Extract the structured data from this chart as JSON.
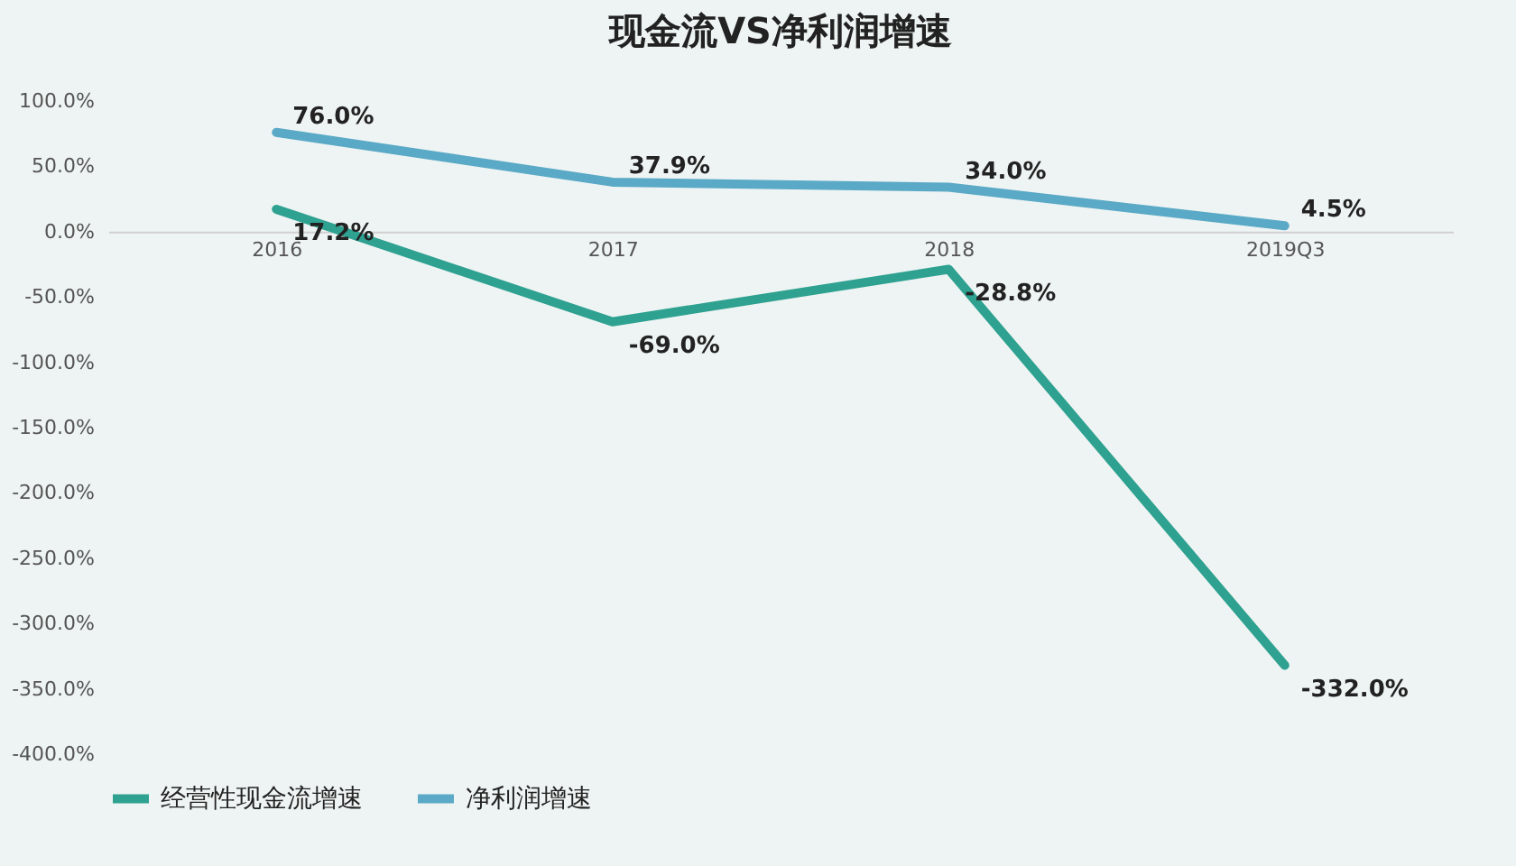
{
  "chart_data": {
    "type": "line",
    "title": "现金流VS净利润增速",
    "categories": [
      "2016",
      "2017",
      "2018",
      "2019Q3"
    ],
    "series": [
      {
        "name": "经营性现金流增速",
        "color": "#2ea190",
        "values": [
          17.2,
          -69.0,
          -28.8,
          -332.0
        ],
        "value_labels": [
          "17.2%",
          "-69.0%",
          "-28.8%",
          "-332.0%"
        ]
      },
      {
        "name": "净利润增速",
        "color": "#5aa9c6",
        "values": [
          76.0,
          37.9,
          34.0,
          4.5
        ],
        "value_labels": [
          "76.0%",
          "37.9%",
          "34.0%",
          "4.5%"
        ]
      }
    ],
    "ylim": [
      -400,
      100
    ],
    "yticks": [
      {
        "value": -400,
        "label": "-400.0%"
      },
      {
        "value": -350,
        "label": "-350.0%"
      },
      {
        "value": -300,
        "label": "-300.0%"
      },
      {
        "value": -250,
        "label": "-250.0%"
      },
      {
        "value": -200,
        "label": "-200.0%"
      },
      {
        "value": -150,
        "label": "-150.0%"
      },
      {
        "value": -100,
        "label": "-100.0%"
      },
      {
        "value": -50,
        "label": "-50.0%"
      },
      {
        "value": 0,
        "label": "0.0%"
      },
      {
        "value": 50,
        "label": "50.0%"
      },
      {
        "value": 100,
        "label": "100.0%"
      }
    ],
    "grid": false,
    "legend": "bottom",
    "marker": "none",
    "line_style": "solid"
  }
}
